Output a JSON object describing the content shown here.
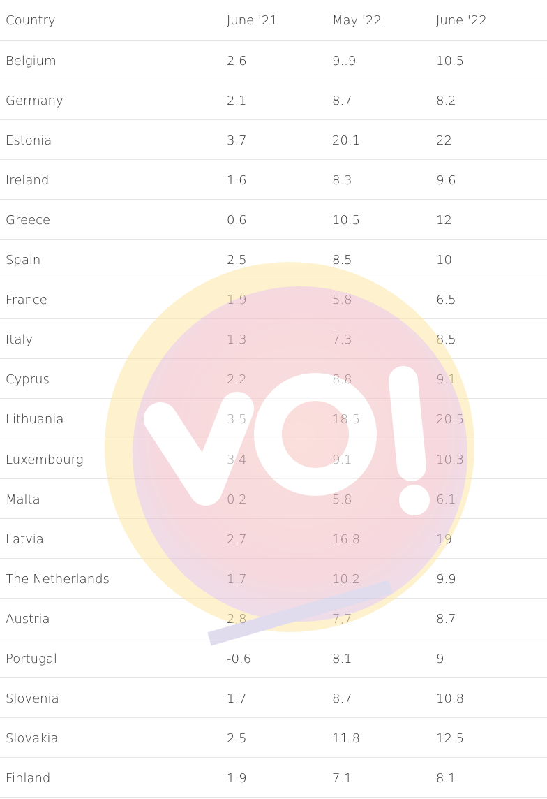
{
  "table": {
    "header": [
      "Country",
      "June '21",
      "May '22",
      "June '22"
    ],
    "rows": [
      [
        "Belgium",
        "2.6",
        "9..9",
        "10.5"
      ],
      [
        "Germany",
        "2.1",
        "8.7",
        "8.2"
      ],
      [
        "Estonia",
        "3.7",
        "20.1",
        "22"
      ],
      [
        "Ireland",
        "1.6",
        "8.3",
        "9.6"
      ],
      [
        "Greece",
        "0.6",
        "10.5",
        "12"
      ],
      [
        "Spain",
        "2.5",
        "8.5",
        "10"
      ],
      [
        "France",
        "1.9",
        "5.8",
        "6.5"
      ],
      [
        "Italy",
        "1.3",
        "7.3",
        "8.5"
      ],
      [
        "Cyprus",
        "2.2",
        "8.8",
        "9.1"
      ],
      [
        "Lithuania",
        "3.5",
        "18.5",
        "20.5"
      ],
      [
        "Luxembourg",
        "3.4",
        "9.1",
        "10.3"
      ],
      [
        "Malta",
        "0.2",
        "5.8",
        "6.1"
      ],
      [
        "Latvia",
        "2.7",
        "16.8",
        "19"
      ],
      [
        "The Netherlands",
        "1.7",
        "10.2",
        "9.9"
      ],
      [
        "Austria",
        "2,8",
        "7,7",
        "8.7"
      ],
      [
        "Portugal",
        "-0.6",
        "8.1",
        "9"
      ],
      [
        "Slovenia",
        "1.7",
        "8.7",
        "10.8"
      ],
      [
        "Slovakia",
        "2.5",
        "11.8",
        "12.5"
      ],
      [
        "Finland",
        "1.9",
        "7.1",
        "8.1"
      ]
    ]
  }
}
